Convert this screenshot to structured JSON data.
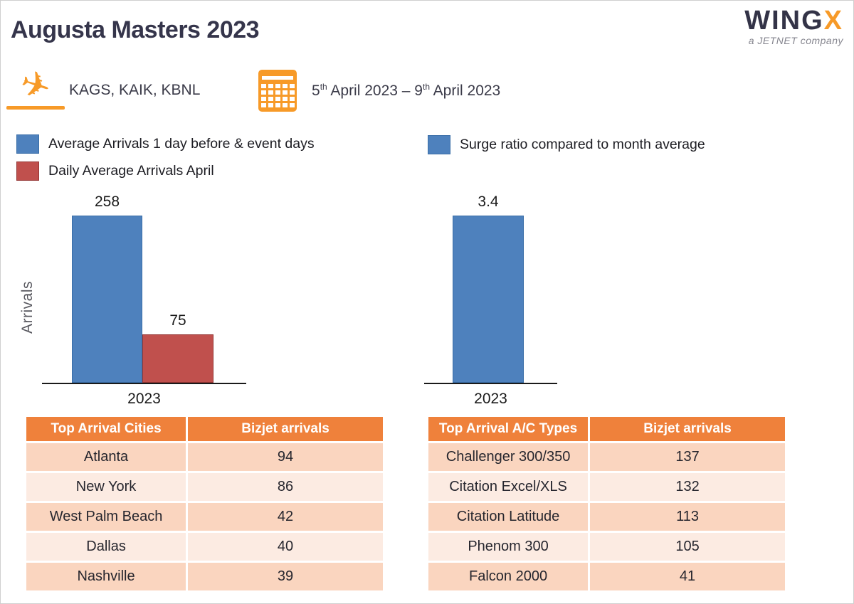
{
  "header": {
    "title": "Augusta Masters 2023",
    "logo": {
      "wing": "WING",
      "x": "X",
      "tagline": "a JETNET company"
    }
  },
  "info": {
    "airports": "KAGS, KAIK, KBNL",
    "date": {
      "day1": "5",
      "suffix1": "th",
      "rest1": " April 2023 – ",
      "day2": "9",
      "suffix2": "th",
      "rest2": " April 2023"
    }
  },
  "legends": {
    "left": [
      {
        "label": "Average Arrivals 1 day before & event days",
        "color": "#4E81BD",
        "border": "#3A6EA8"
      },
      {
        "label": "Daily Average Arrivals April",
        "color": "#C0504D",
        "border": "#953735"
      }
    ],
    "right": [
      {
        "label": "Surge ratio compared to month average",
        "color": "#4E81BD",
        "border": "#3A6EA8"
      }
    ]
  },
  "chart_data": [
    {
      "type": "bar",
      "categories": [
        "2023"
      ],
      "series": [
        {
          "name": "Average Arrivals 1 day before & event days",
          "values": [
            258
          ],
          "color": "#4E81BD"
        },
        {
          "name": "Daily Average Arrivals April",
          "values": [
            75
          ],
          "color": "#C0504D"
        }
      ],
      "data_labels": [
        "258",
        "75"
      ],
      "x_tick": "2023",
      "title": "",
      "xlabel": "",
      "ylabel": "Arrivals",
      "ylim": [
        0,
        258
      ],
      "grid": false,
      "legend_position": "top-left"
    },
    {
      "type": "bar",
      "categories": [
        "2023"
      ],
      "series": [
        {
          "name": "Surge ratio compared to month average",
          "values": [
            3.4
          ],
          "color": "#4E81BD"
        }
      ],
      "data_labels": [
        "3.4"
      ],
      "x_tick": "2023",
      "title": "",
      "xlabel": "",
      "ylabel": "",
      "ylim": [
        0,
        3.4
      ],
      "grid": false,
      "legend_position": "top-left"
    }
  ],
  "tables": {
    "left": {
      "headers": [
        "Top Arrival Cities",
        "Bizjet arrivals"
      ],
      "rows": [
        [
          "Atlanta",
          "94"
        ],
        [
          "New York",
          "86"
        ],
        [
          "West Palm Beach",
          "42"
        ],
        [
          "Dallas",
          "40"
        ],
        [
          "Nashville",
          "39"
        ]
      ]
    },
    "right": {
      "headers": [
        "Top Arrival A/C Types",
        "Bizjet arrivals"
      ],
      "rows": [
        [
          "Challenger 300/350",
          "137"
        ],
        [
          "Citation Excel/XLS",
          "132"
        ],
        [
          "Citation Latitude",
          "113"
        ],
        [
          "Phenom 300",
          "105"
        ],
        [
          "Falcon 2000",
          "41"
        ]
      ]
    }
  },
  "colors": {
    "accent_orange": "#F79A28",
    "table_header_orange": "#EF813B",
    "row_dark": "#FAD5BF",
    "row_light": "#FCEBE2",
    "bar_blue": "#4E81BD",
    "bar_red": "#C0504D",
    "title_navy": "#35354B"
  }
}
